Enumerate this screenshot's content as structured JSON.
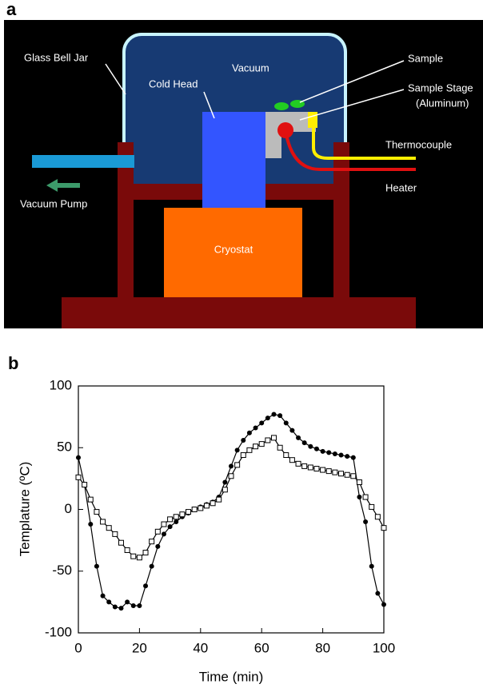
{
  "panel_a": {
    "letter": "a",
    "labels": {
      "bell_jar": "Glass Bell Jar",
      "vacuum": "Vacuum",
      "cold_head": "Cold Head",
      "sample": "Sample",
      "stage": "Sample Stage",
      "stage_material": "(Aluminum)",
      "thermocouple": "Thermocouple",
      "heater": "Heater",
      "pump": "Vacuum Pump",
      "cryostat": "Cryostat"
    }
  },
  "panel_b": {
    "letter": "b"
  },
  "chart_data": {
    "type": "line",
    "x_label": "Time (min)",
    "y_label": "Templature (ºC)",
    "x": [
      0,
      2,
      4,
      6,
      8,
      10,
      12,
      14,
      16,
      18,
      20,
      22,
      24,
      26,
      28,
      30,
      32,
      34,
      36,
      38,
      40,
      42,
      44,
      46,
      48,
      50,
      52,
      54,
      56,
      58,
      60,
      62,
      64,
      66,
      68,
      70,
      72,
      74,
      76,
      78,
      80,
      82,
      84,
      86,
      88,
      90,
      92,
      94,
      96,
      98,
      100
    ],
    "series": [
      {
        "color": "#000000",
        "marker": "filled-circle",
        "values": [
          42,
          20,
          -12,
          -46,
          -70,
          -75,
          -79,
          -80,
          -75,
          -78,
          -78,
          -62,
          -46,
          -30,
          -20,
          -14,
          -10,
          -6,
          -3,
          0,
          2,
          4,
          6,
          10,
          22,
          35,
          48,
          56,
          62,
          66,
          70,
          74,
          77,
          76,
          70,
          64,
          58,
          54,
          51,
          49,
          47,
          46,
          45,
          44,
          43,
          42,
          10,
          -10,
          -46,
          -68,
          -77
        ]
      },
      {
        "color": "#000000",
        "marker": "open-square",
        "values": [
          26,
          20,
          8,
          -2,
          -10,
          -15,
          -20,
          -27,
          -33,
          -38,
          -39,
          -35,
          -26,
          -18,
          -12,
          -8,
          -6,
          -4,
          -2,
          0,
          1,
          3,
          5,
          8,
          16,
          27,
          36,
          44,
          48,
          51,
          53,
          56,
          58,
          50,
          44,
          40,
          37,
          35,
          34,
          33,
          32,
          31,
          30,
          29,
          28,
          27,
          22,
          10,
          2,
          -6,
          -15
        ]
      }
    ],
    "xlim": [
      0,
      100
    ],
    "ylim": [
      -100,
      100
    ],
    "xticks": [
      0,
      20,
      40,
      60,
      80,
      100
    ],
    "yticks": [
      -100,
      -50,
      0,
      50,
      100
    ],
    "grid": false
  }
}
